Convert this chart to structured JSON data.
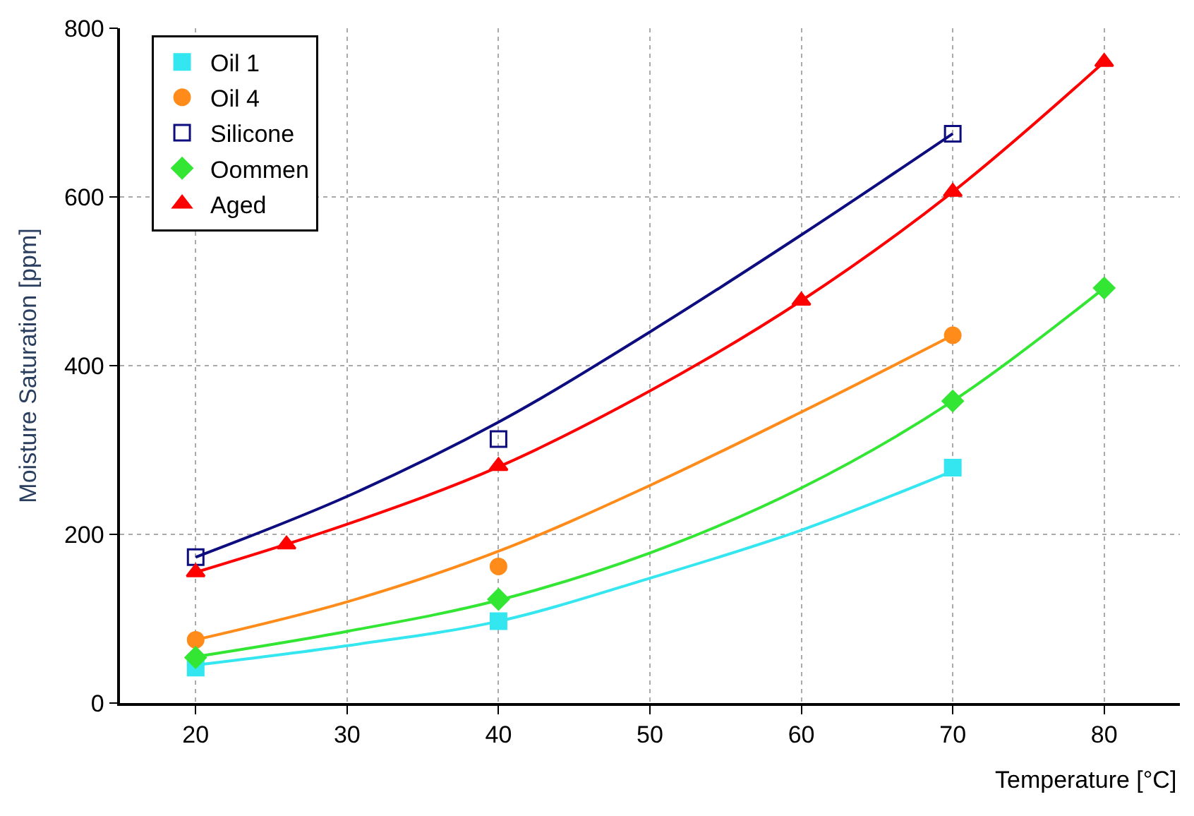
{
  "chart_data": {
    "type": "scatter",
    "xlabel": "Temperature [°C]",
    "ylabel": "Moisture Saturation [ppm]",
    "xlim": [
      15,
      85
    ],
    "xticks": [
      20,
      30,
      40,
      50,
      60,
      70,
      80
    ],
    "ylim": [
      0,
      800
    ],
    "yticks": [
      0,
      200,
      400,
      600,
      800
    ],
    "grid": true,
    "legend": "top left",
    "series": [
      {
        "name": "Oil 1",
        "color": "#33e6f0",
        "marker": "square",
        "x": [
          20,
          40,
          70
        ],
        "values": [
          42,
          97,
          279
        ]
      },
      {
        "name": "Oil 4",
        "color": "#ff8c1a",
        "marker": "circle",
        "x": [
          20,
          40,
          70
        ],
        "values": [
          75,
          162,
          436
        ]
      },
      {
        "name": "Silicone",
        "color": "#0d0d80",
        "marker": "square-open",
        "x": [
          20,
          40,
          70
        ],
        "values": [
          173,
          313,
          675
        ]
      },
      {
        "name": "Oommen",
        "color": "#33e633",
        "marker": "diamond",
        "x": [
          20,
          40,
          70,
          80
        ],
        "values": [
          54,
          123,
          358,
          492
        ]
      },
      {
        "name": "Aged",
        "color": "#ff0000",
        "marker": "triangle",
        "x": [
          20,
          26,
          40,
          60,
          70,
          80
        ],
        "values": [
          155,
          188,
          281,
          477,
          606,
          760
        ]
      },
      {
        "type": "line",
        "color": "#33e6f0",
        "marker": "none",
        "x": [
          20,
          30,
          40,
          50,
          60,
          70
        ],
        "values": [
          45,
          68,
          97,
          148,
          205,
          275
        ]
      },
      {
        "type": "line",
        "color": "#ff8c1a",
        "marker": "none",
        "x": [
          20,
          30,
          40,
          50,
          60,
          70
        ],
        "values": [
          75,
          120,
          180,
          258,
          345,
          436
        ]
      },
      {
        "type": "line",
        "color": "#0d0d80",
        "marker": "none",
        "x": [
          20,
          30,
          40,
          50,
          60,
          70
        ],
        "values": [
          173,
          245,
          333,
          440,
          555,
          675
        ]
      },
      {
        "type": "line",
        "color": "#33e633",
        "marker": "none",
        "x": [
          20,
          30,
          40,
          50,
          60,
          70,
          80
        ],
        "values": [
          55,
          85,
          122,
          178,
          255,
          358,
          492
        ]
      },
      {
        "type": "line",
        "color": "#ff0000",
        "marker": "none",
        "x": [
          20,
          30,
          40,
          50,
          60,
          70,
          80
        ],
        "values": [
          155,
          212,
          280,
          370,
          477,
          606,
          760
        ]
      }
    ]
  }
}
